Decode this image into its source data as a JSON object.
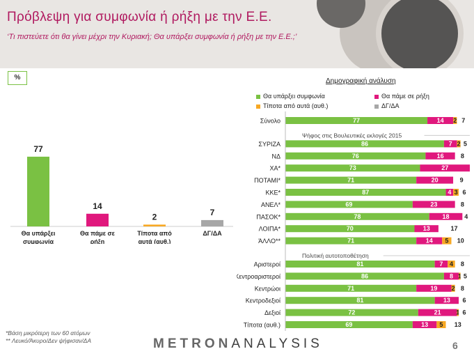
{
  "header": {
    "title": "Πρόβλεψη για συμφωνία ή ρήξη με την Ε.Ε.",
    "subtitle": "‘Τι πιστεύετε ότι θα γίνει μέχρι την Κυριακή; Θα υπάρξει συμφωνία ή ρήξη με την Ε.Ε.;’"
  },
  "pct_label": "%",
  "demo_title": "Δημογραφική ανάλυση",
  "colors": {
    "green": "#7ac143",
    "magenta": "#e0187d",
    "orange": "#f7a823",
    "gray": "#a7a7a7",
    "title": "#b0195f"
  },
  "legend": [
    {
      "label": "Θα υπάρξει συμφωνία",
      "color": "#7ac143"
    },
    {
      "label": "Θα πάμε σε ρήξη",
      "color": "#e0187d"
    },
    {
      "label": "Τίποτα από αυτά (αυθ.)",
      "color": "#f7a823"
    },
    {
      "label": "ΔΓ/ΔΑ",
      "color": "#a7a7a7"
    }
  ],
  "chart_data": [
    {
      "type": "bar",
      "categories": [
        "Θα υπάρξει συμφωνία",
        "Θα πάμε σε ρήξη",
        "Τίποτα από αυτά (αυθ.)",
        "ΔΓ/ΔΑ"
      ],
      "values": [
        77,
        14,
        2,
        7
      ],
      "colors": [
        "#7ac143",
        "#e0187d",
        "#f7a823",
        "#a7a7a7"
      ],
      "ylim": [
        0,
        100
      ]
    },
    {
      "type": "bar",
      "orientation": "horizontal-stacked",
      "series_names": [
        "Θα υπάρξει συμφωνία",
        "Θα πάμε σε ρήξη",
        "Τίποτα από αυτά (αυθ.)",
        "ΔΓ/ΔΑ"
      ],
      "groups": [
        {
          "label": "",
          "rows": [
            {
              "label": "Σύνολο",
              "values": [
                77,
                14,
                2,
                7
              ]
            }
          ]
        },
        {
          "label": "Ψήφος στις Βουλευτικές εκλογές 2015",
          "rows": [
            {
              "label": "ΣΥΡΙΖΑ",
              "values": [
                86,
                7,
                2,
                5
              ]
            },
            {
              "label": "ΝΔ",
              "values": [
                76,
                16,
                0,
                8
              ]
            },
            {
              "label": "ΧΑ*",
              "values": [
                73,
                27,
                0,
                0
              ]
            },
            {
              "label": "ΠΟΤΑΜΙ*",
              "values": [
                71,
                20,
                0,
                9
              ]
            },
            {
              "label": "ΚΚΕ*",
              "values": [
                87,
                4,
                3,
                6
              ]
            },
            {
              "label": "ΑΝΕΛ*",
              "values": [
                69,
                23,
                0,
                8
              ]
            },
            {
              "label": "ΠΑΣΟΚ*",
              "values": [
                78,
                18,
                0,
                4
              ]
            },
            {
              "label": "ΛΟΙΠΑ*",
              "values": [
                70,
                13,
                0,
                17
              ]
            },
            {
              "label": "ΆΛΛΟ**",
              "values": [
                71,
                14,
                5,
                10
              ]
            }
          ]
        },
        {
          "label": "Πολιτική αυτοτοποθέτηση",
          "rows": [
            {
              "label": "Αριστεροί",
              "values": [
                81,
                7,
                4,
                8
              ]
            },
            {
              "label": "Κεντροαριστεροί",
              "values": [
                86,
                8,
                1,
                5
              ]
            },
            {
              "label": "Κεντρώοι",
              "values": [
                71,
                19,
                2,
                8
              ]
            },
            {
              "label": "Κεντροδεξιοί",
              "values": [
                81,
                13,
                0,
                6
              ]
            },
            {
              "label": "Δεξιοί",
              "values": [
                72,
                21,
                1,
                6
              ]
            },
            {
              "label": "Τίποτα (αυθ.)",
              "values": [
                69,
                13,
                5,
                13
              ]
            }
          ]
        }
      ],
      "xlim": [
        0,
        100
      ]
    }
  ],
  "footnotes": [
    "*Βάση μικρότερη των 60 ατόμων",
    "** Λευκό/Άκυρο/Δεν ψήφισαν/ΔΑ"
  ],
  "logo": {
    "part1": "METRON",
    "part2": "ANALYSIS"
  },
  "page_number": "6"
}
